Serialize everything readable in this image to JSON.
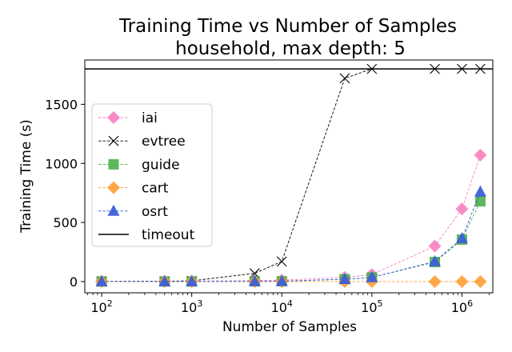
{
  "chart_data": {
    "type": "line",
    "title": "Training Time vs Number of Samples",
    "subtitle": "household, max depth: 5",
    "xlabel": "Number of Samples",
    "ylabel": "Training Time (s)",
    "xscale": "log",
    "xlim": [
      65,
      2200000
    ],
    "ylim": [
      -95,
      1875
    ],
    "xticks": [
      {
        "value": 100,
        "base": "10",
        "exp": "2"
      },
      {
        "value": 1000,
        "base": "10",
        "exp": "3"
      },
      {
        "value": 10000,
        "base": "10",
        "exp": "4"
      },
      {
        "value": 100000,
        "base": "10",
        "exp": "5"
      },
      {
        "value": 1000000,
        "base": "10",
        "exp": "6"
      }
    ],
    "yticks": [
      {
        "value": 0,
        "label": "0"
      },
      {
        "value": 500,
        "label": "500"
      },
      {
        "value": 1000,
        "label": "1000"
      },
      {
        "value": 1500,
        "label": "1500"
      }
    ],
    "grid": false,
    "legend_position": "center-left",
    "timeout": {
      "name": "timeout",
      "value": 1800,
      "color": "#000000"
    },
    "x": [
      100,
      500,
      1000,
      5000,
      10000,
      50000,
      100000,
      500000,
      1000000,
      1600000
    ],
    "series": [
      {
        "name": "iai",
        "marker": "diamond",
        "color": "#f781bf",
        "values": [
          2,
          3,
          4,
          8,
          12,
          35,
          60,
          300,
          615,
          1070
        ]
      },
      {
        "name": "evtree",
        "marker": "x",
        "color": "#000000",
        "values": [
          1,
          3,
          6,
          70,
          170,
          1720,
          1800,
          1800,
          1800,
          1800
        ]
      },
      {
        "name": "guide",
        "marker": "square",
        "color": "#4daf4a",
        "values": [
          1,
          1,
          1,
          2,
          3,
          20,
          35,
          165,
          355,
          680
        ]
      },
      {
        "name": "cart",
        "marker": "diamond",
        "color": "#ff9f33",
        "values": [
          0,
          0,
          0,
          0,
          0,
          0,
          0,
          0,
          0,
          0
        ]
      },
      {
        "name": "osrt",
        "marker": "triangle",
        "color": "#3b5fd9",
        "values": [
          1,
          1,
          1,
          2,
          3,
          20,
          35,
          170,
          365,
          760
        ]
      }
    ]
  }
}
